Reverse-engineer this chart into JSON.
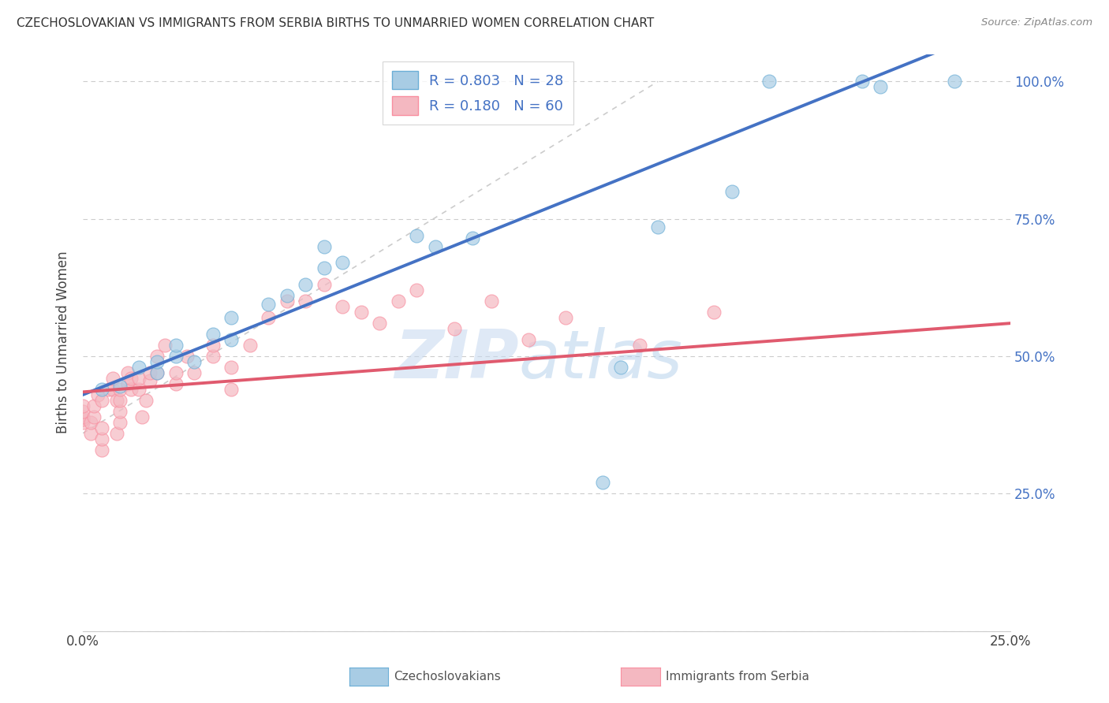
{
  "title": "CZECHOSLOVAKIAN VS IMMIGRANTS FROM SERBIA BIRTHS TO UNMARRIED WOMEN CORRELATION CHART",
  "source": "Source: ZipAtlas.com",
  "ylabel": "Births to Unmarried Women",
  "xlim": [
    0.0,
    0.25
  ],
  "ylim": [
    0.0,
    1.05
  ],
  "xticks": [
    0.0,
    0.05,
    0.1,
    0.15,
    0.2,
    0.25
  ],
  "yticks": [
    0.0,
    0.25,
    0.5,
    0.75,
    1.0
  ],
  "xticklabels": [
    "0.0%",
    "",
    "",
    "",
    "",
    "25.0%"
  ],
  "yticklabels_right": [
    "",
    "25.0%",
    "50.0%",
    "75.0%",
    "100.0%"
  ],
  "legend_label1": "Czechoslovakians",
  "legend_label2": "Immigrants from Serbia",
  "r1": 0.803,
  "n1": 28,
  "r2": 0.18,
  "n2": 60,
  "color1": "#a8cce4",
  "color2": "#f4b8c1",
  "color1_edge": "#6baed6",
  "color2_edge": "#f98fa0",
  "color1_line": "#4472c4",
  "color2_line": "#e05a6e",
  "watermark_zip": "ZIP",
  "watermark_atlas": "atlas",
  "background_color": "#ffffff",
  "grid_color": "#cccccc",
  "blue_dots_x": [
    0.005,
    0.01,
    0.015,
    0.02,
    0.02,
    0.025,
    0.025,
    0.03,
    0.035,
    0.04,
    0.04,
    0.05,
    0.055,
    0.06,
    0.065,
    0.065,
    0.07,
    0.09,
    0.095,
    0.105,
    0.14,
    0.145,
    0.155,
    0.175,
    0.185,
    0.21,
    0.215,
    0.235
  ],
  "blue_dots_y": [
    0.44,
    0.445,
    0.48,
    0.47,
    0.49,
    0.5,
    0.52,
    0.49,
    0.54,
    0.53,
    0.57,
    0.595,
    0.61,
    0.63,
    0.66,
    0.7,
    0.67,
    0.72,
    0.7,
    0.715,
    0.27,
    0.48,
    0.735,
    0.8,
    1.0,
    1.0,
    0.99,
    1.0
  ],
  "pink_dots_x": [
    0.0,
    0.0,
    0.0,
    0.0,
    0.0,
    0.002,
    0.002,
    0.003,
    0.003,
    0.004,
    0.005,
    0.005,
    0.005,
    0.005,
    0.007,
    0.008,
    0.008,
    0.009,
    0.009,
    0.01,
    0.01,
    0.01,
    0.01,
    0.012,
    0.012,
    0.013,
    0.013,
    0.015,
    0.015,
    0.016,
    0.017,
    0.018,
    0.018,
    0.02,
    0.02,
    0.022,
    0.025,
    0.025,
    0.028,
    0.03,
    0.035,
    0.035,
    0.04,
    0.04,
    0.045,
    0.05,
    0.055,
    0.06,
    0.065,
    0.07,
    0.075,
    0.08,
    0.085,
    0.09,
    0.1,
    0.11,
    0.12,
    0.13,
    0.15,
    0.17
  ],
  "pink_dots_y": [
    0.38,
    0.385,
    0.39,
    0.4,
    0.41,
    0.36,
    0.38,
    0.39,
    0.41,
    0.43,
    0.33,
    0.35,
    0.37,
    0.42,
    0.44,
    0.44,
    0.46,
    0.36,
    0.42,
    0.38,
    0.4,
    0.42,
    0.44,
    0.45,
    0.47,
    0.44,
    0.46,
    0.44,
    0.46,
    0.39,
    0.42,
    0.455,
    0.47,
    0.47,
    0.5,
    0.52,
    0.45,
    0.47,
    0.5,
    0.47,
    0.5,
    0.52,
    0.44,
    0.48,
    0.52,
    0.57,
    0.6,
    0.6,
    0.63,
    0.59,
    0.58,
    0.56,
    0.6,
    0.62,
    0.55,
    0.6,
    0.53,
    0.57,
    0.52,
    0.58
  ],
  "diag_line_x": [
    0.0,
    0.155
  ],
  "diag_line_y": [
    0.36,
    1.0
  ]
}
